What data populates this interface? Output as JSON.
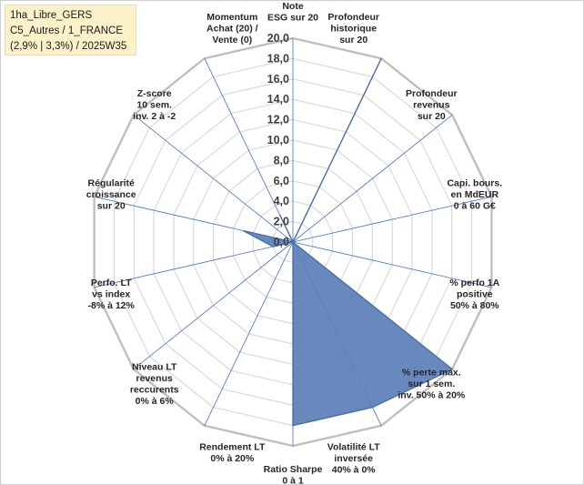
{
  "info": {
    "line1": "1ha_Libre_GERS",
    "line2": "C5_Autres / 1_FRANCE",
    "line3": "(2,9% | 3,3%) / 2025W35"
  },
  "colors": {
    "fill": "#5b7fb8",
    "stroke": "#4a6ea8",
    "spoke": "#4472c4",
    "grid": "#d9d9d9"
  },
  "chart_data": {
    "type": "radar",
    "rmin": 0,
    "rmax": 20,
    "tick_step": 2,
    "tick_labels": [
      "0,0",
      "2,0",
      "4,0",
      "6,0",
      "8,0",
      "10,0",
      "12,0",
      "14,0",
      "16,0",
      "18,0",
      "20,0"
    ],
    "axes": [
      {
        "label": [
          "Note",
          "ESG sur 20"
        ],
        "value": 0
      },
      {
        "label": [
          "Profondeur",
          "historique",
          "sur 20"
        ],
        "value": 20
      },
      {
        "label": [
          "Profondeur",
          "revenus",
          "sur 20"
        ],
        "value": 0
      },
      {
        "label": [
          "Capi. bours.",
          "en MdEUR",
          "0 à 60 G€"
        ],
        "value": 0
      },
      {
        "label": [
          "% perfo 1A",
          "positive",
          "50% à 80%"
        ],
        "value": 0
      },
      {
        "label": [
          "% perte max.",
          "sur 1 sem.",
          "inv. 50% à 20%"
        ],
        "value": 20
      },
      {
        "label": [
          "Volatilité LT",
          "inversée",
          "40% à 0%"
        ],
        "value": 18
      },
      {
        "label": [
          "Ratio Sharpe",
          "0 à 1"
        ],
        "value": 18
      },
      {
        "label": [
          "Rendement LT",
          "0% à 20%"
        ],
        "value": 0
      },
      {
        "label": [
          "Niveau LT",
          "revenus",
          "reccurents",
          "0% à 6%"
        ],
        "value": 0
      },
      {
        "label": [
          "Perfo. LT",
          "vs index",
          "-8% à 12%"
        ],
        "value": 2
      },
      {
        "label": [
          "Régularité",
          "croissance",
          "sur 20"
        ],
        "value": 5
      },
      {
        "label": [
          "Z-score",
          "10 sem.",
          "inv. 2 à -2"
        ],
        "value": 0
      },
      {
        "label": [
          "Momentum",
          "Achat (20) /",
          "Vente (0)"
        ],
        "value": 3
      }
    ]
  }
}
